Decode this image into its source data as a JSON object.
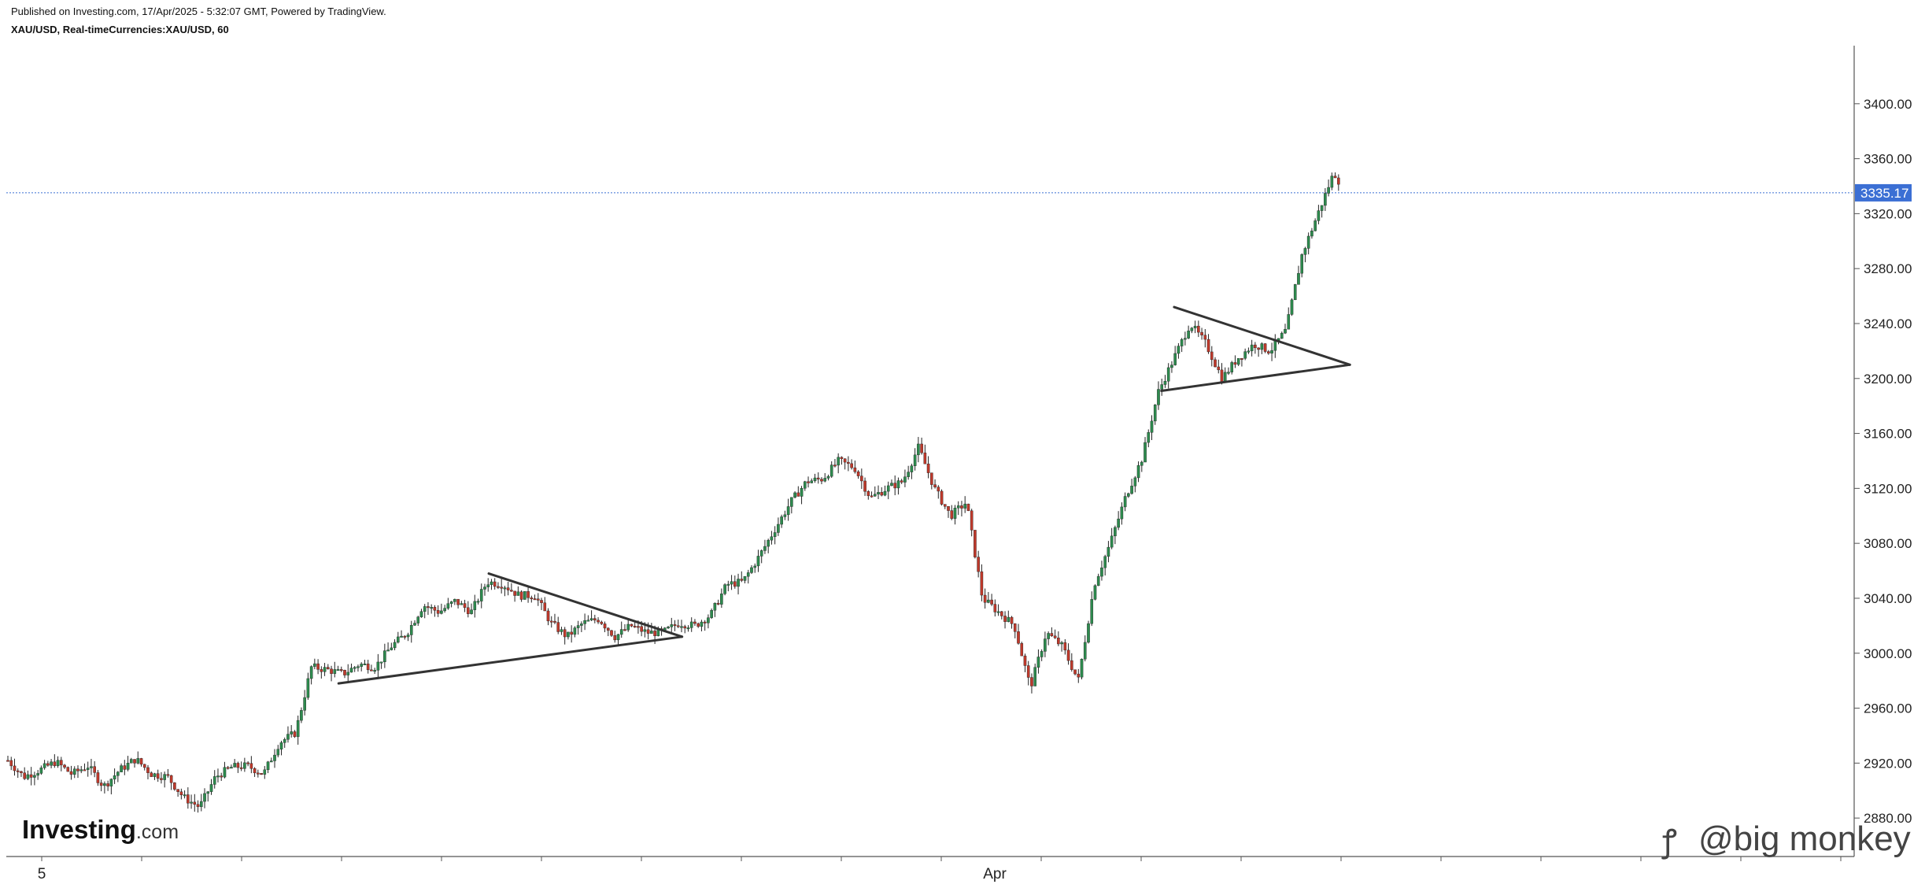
{
  "header": {
    "published": "Published on Investing.com, 17/Apr/2025 - 5:32:07 GMT, Powered by TradingView.",
    "symbol": "XAU/USD, Real-timeCurrencies:XAU/USD, 60"
  },
  "watermarks": {
    "investing_logo": "Investing.com",
    "user_handle": "@big monkey"
  },
  "colors": {
    "up": "#2d8b4e",
    "down": "#c0392b",
    "wick": "#222222",
    "last_price_bg": "#3b6fd4",
    "trendline": "#333333"
  },
  "chart_data": {
    "type": "candlestick",
    "title": "",
    "timeframe": "60",
    "xlabel": "",
    "ylabel": "",
    "x_ticks": [
      "5",
      "Apr"
    ],
    "y_ticks": [
      "3400.00",
      "3360.00",
      "3320.00",
      "3280.00",
      "3240.00",
      "3200.00",
      "3160.00",
      "3120.00",
      "3080.00",
      "3040.00",
      "3000.00",
      "2960.00",
      "2920.00",
      "2880.00"
    ],
    "ylim": [
      2852,
      3440
    ],
    "last_price": 3335.17,
    "last_price_label": "3335.17",
    "trend_lines": [
      {
        "name": "triangle-1-upper",
        "from": [
          0.301,
          3058
        ],
        "to": [
          0.422,
          3012
        ]
      },
      {
        "name": "triangle-1-lower",
        "from": [
          0.207,
          2978
        ],
        "to": [
          0.422,
          3012
        ]
      },
      {
        "name": "triangle-2-upper",
        "from": [
          0.73,
          3252
        ],
        "to": [
          0.84,
          3210
        ]
      },
      {
        "name": "triangle-2-lower",
        "from": [
          0.722,
          3191
        ],
        "to": [
          0.84,
          3210
        ]
      }
    ],
    "price_path": [
      [
        0.0,
        2922
      ],
      [
        0.01,
        2910
      ],
      [
        0.02,
        2915
      ],
      [
        0.03,
        2921
      ],
      [
        0.04,
        2912
      ],
      [
        0.05,
        2918
      ],
      [
        0.06,
        2903
      ],
      [
        0.07,
        2915
      ],
      [
        0.08,
        2923
      ],
      [
        0.09,
        2912
      ],
      [
        0.1,
        2910
      ],
      [
        0.11,
        2895
      ],
      [
        0.12,
        2888
      ],
      [
        0.13,
        2910
      ],
      [
        0.14,
        2917
      ],
      [
        0.15,
        2918
      ],
      [
        0.16,
        2912
      ],
      [
        0.17,
        2935
      ],
      [
        0.18,
        2942
      ],
      [
        0.19,
        2990
      ],
      [
        0.2,
        2988
      ],
      [
        0.21,
        2985
      ],
      [
        0.22,
        2992
      ],
      [
        0.23,
        2990
      ],
      [
        0.24,
        3005
      ],
      [
        0.25,
        3015
      ],
      [
        0.26,
        3035
      ],
      [
        0.27,
        3030
      ],
      [
        0.28,
        3038
      ],
      [
        0.29,
        3030
      ],
      [
        0.3,
        3052
      ],
      [
        0.31,
        3050
      ],
      [
        0.32,
        3042
      ],
      [
        0.33,
        3042
      ],
      [
        0.34,
        3022
      ],
      [
        0.35,
        3012
      ],
      [
        0.36,
        3022
      ],
      [
        0.37,
        3025
      ],
      [
        0.38,
        3012
      ],
      [
        0.39,
        3020
      ],
      [
        0.4,
        3015
      ],
      [
        0.41,
        3015
      ],
      [
        0.42,
        3022
      ],
      [
        0.43,
        3020
      ],
      [
        0.44,
        3028
      ],
      [
        0.45,
        3050
      ],
      [
        0.46,
        3052
      ],
      [
        0.47,
        3070
      ],
      [
        0.48,
        3090
      ],
      [
        0.49,
        3110
      ],
      [
        0.5,
        3125
      ],
      [
        0.51,
        3127
      ],
      [
        0.52,
        3140
      ],
      [
        0.53,
        3135
      ],
      [
        0.54,
        3113
      ],
      [
        0.55,
        3120
      ],
      [
        0.56,
        3125
      ],
      [
        0.57,
        3150
      ],
      [
        0.58,
        3120
      ],
      [
        0.59,
        3100
      ],
      [
        0.6,
        3110
      ],
      [
        0.61,
        3040
      ],
      [
        0.62,
        3030
      ],
      [
        0.63,
        3020
      ],
      [
        0.64,
        2975
      ],
      [
        0.65,
        3015
      ],
      [
        0.66,
        3005
      ],
      [
        0.67,
        2980
      ],
      [
        0.68,
        3050
      ],
      [
        0.69,
        3080
      ],
      [
        0.7,
        3115
      ],
      [
        0.71,
        3142
      ],
      [
        0.72,
        3190
      ],
      [
        0.73,
        3215
      ],
      [
        0.74,
        3240
      ],
      [
        0.75,
        3225
      ],
      [
        0.76,
        3200
      ],
      [
        0.77,
        3215
      ],
      [
        0.78,
        3225
      ],
      [
        0.79,
        3220
      ],
      [
        0.8,
        3235
      ],
      [
        0.81,
        3290
      ],
      [
        0.82,
        3320
      ],
      [
        0.83,
        3350
      ],
      [
        0.835,
        3340
      ]
    ]
  }
}
